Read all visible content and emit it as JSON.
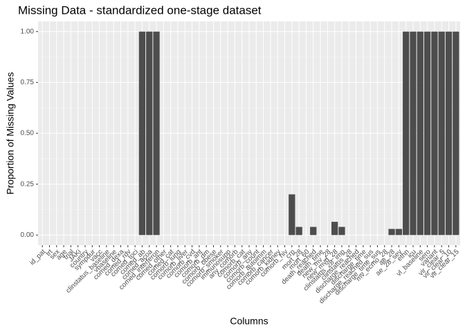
{
  "chart_data": {
    "type": "bar",
    "title": "Missing Data - standardized one-stage dataset",
    "x_label": "Columns",
    "y_label": "Proportion of Missing Values",
    "color": "#4d4d4d",
    "grid": true,
    "categories": [
      "id_pat",
      "trt",
      "sex",
      "age",
      "trial",
      "JAKi",
      "country",
      "sympdur",
      "vacc",
      "clinstatus_baseline",
      "vbaseline",
      "comed_dexa",
      "comed_rdv",
      "comed_toci",
      "comed_ab",
      "comed_acoa",
      "comed_interferon",
      "comed_other",
      "comed_cat",
      "comorb_lung",
      "comorb_liver",
      "comorb_cvd",
      "comorb_aht",
      "comorb_dm",
      "comorb_obese",
      "comorb_smoker",
      "immunosupp",
      "any_comorb",
      "comorb_cat",
      "comorb_any",
      "comorb_count",
      "comorb_autoimm",
      "comorb_cancer",
      "comorb_kidney",
      "comorb_hiv",
      "crp",
      "mort_28",
      "mort_60",
      "death_reached",
      "death_time",
      "new_mv_28",
      "new_mvd_28",
      "clinstatus_28_imp",
      "clinstatus_28",
      "discharge_reached",
      "discharge_time",
      "discharge_reached_sus",
      "discharge_time_sus",
      "mv_ecmo_28",
      "ae_28",
      "ae_28_sev",
      "ethn",
      "icu",
      "vl_baseline",
      "sero",
      "variant",
      "vir_clear_5",
      "vir_clear_10",
      "vir_clear_15"
    ],
    "values": [
      0,
      0,
      0,
      0,
      0,
      0,
      0,
      0,
      0,
      0,
      0,
      0,
      0,
      0,
      1,
      1,
      1,
      0,
      0,
      0,
      0,
      0,
      0,
      0,
      0,
      0,
      0,
      0,
      0,
      0,
      0,
      0,
      0,
      0,
      0,
      0.2,
      0.04,
      0,
      0.04,
      0,
      0,
      0.065,
      0.04,
      0,
      0,
      0,
      0,
      0,
      0,
      0.03,
      0.03,
      1,
      1,
      1,
      1,
      1,
      1,
      1,
      1
    ],
    "ylim": [
      -0.05,
      1.05
    ],
    "yticks": [
      {
        "value": 0,
        "label": "0.00"
      },
      {
        "value": 0.25,
        "label": "0.25"
      },
      {
        "value": 0.5,
        "label": "0.50"
      },
      {
        "value": 0.75,
        "label": "0.75"
      },
      {
        "value": 1,
        "label": "1.00"
      }
    ]
  }
}
